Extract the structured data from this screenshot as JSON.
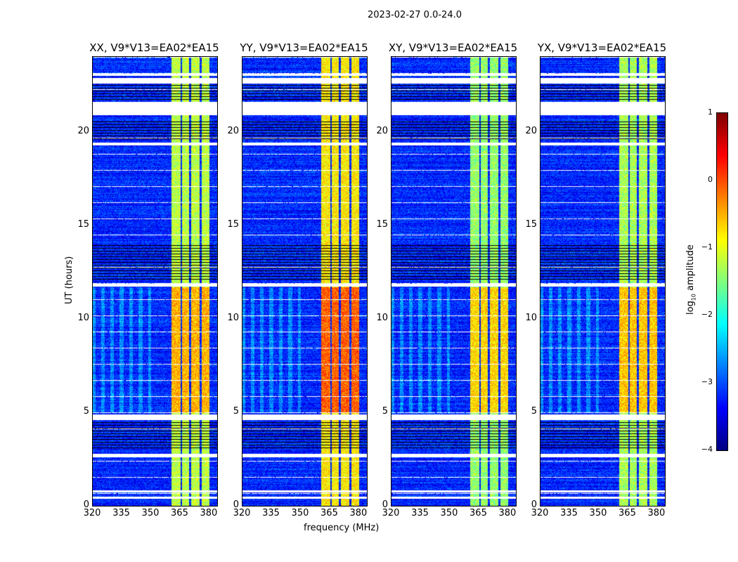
{
  "chart_data": {
    "type": "heatmap",
    "title": "2023-02-27 0.0-24.0",
    "xlabel": "frequency (MHz)",
    "ylabel": "UT (hours)",
    "xlim": [
      320,
      384
    ],
    "ylim": [
      0,
      24
    ],
    "xticks": [
      "320",
      "335",
      "350",
      "365",
      "380"
    ],
    "xtick_values": [
      320,
      335,
      350,
      365,
      380
    ],
    "yticks": [
      "0",
      "5",
      "10",
      "15",
      "20"
    ],
    "ytick_values": [
      0,
      5,
      10,
      15,
      20
    ],
    "panels": [
      {
        "title": "XX, V9*V13=EA02*EA15",
        "rfi_level": -0.9
      },
      {
        "title": "YY, V9*V13=EA02*EA15",
        "rfi_level": -0.5
      },
      {
        "title": "XY, V9*V13=EA02*EA15",
        "rfi_level": -1.1
      },
      {
        "title": "YX, V9*V13=EA02*EA15",
        "rfi_level": -1.0
      }
    ],
    "rfi_bands_mhz": [
      [
        360.4,
        365.1
      ],
      [
        365.8,
        369.4
      ],
      [
        370.5,
        374.8
      ],
      [
        375.9,
        379.9
      ]
    ],
    "flagged_hours": [
      [
        0.4,
        0.5
      ],
      [
        0.75,
        0.85
      ],
      [
        2.6,
        2.8
      ],
      [
        4.6,
        4.9
      ],
      [
        11.75,
        11.9
      ],
      [
        19.3,
        19.45
      ],
      [
        20.9,
        21.6
      ],
      [
        22.6,
        22.9
      ],
      [
        23.0,
        23.1
      ]
    ],
    "black_line_hours": [
      [
        3.0,
        4.5
      ],
      [
        12.0,
        14.0
      ],
      [
        19.5,
        20.6
      ],
      [
        21.6,
        22.5
      ]
    ],
    "background_level": -3.2,
    "colorbar": {
      "label": "log10 amplitude",
      "label_main": "log",
      "label_sub": "10",
      "label_tail": " amplitude",
      "ticks": [
        "1",
        "0",
        "−1",
        "−2",
        "−3",
        "−4"
      ],
      "tick_values": [
        1,
        0,
        -1,
        -2,
        -3,
        -4
      ],
      "range": [
        -4,
        1
      ],
      "colormap": "jet"
    }
  }
}
